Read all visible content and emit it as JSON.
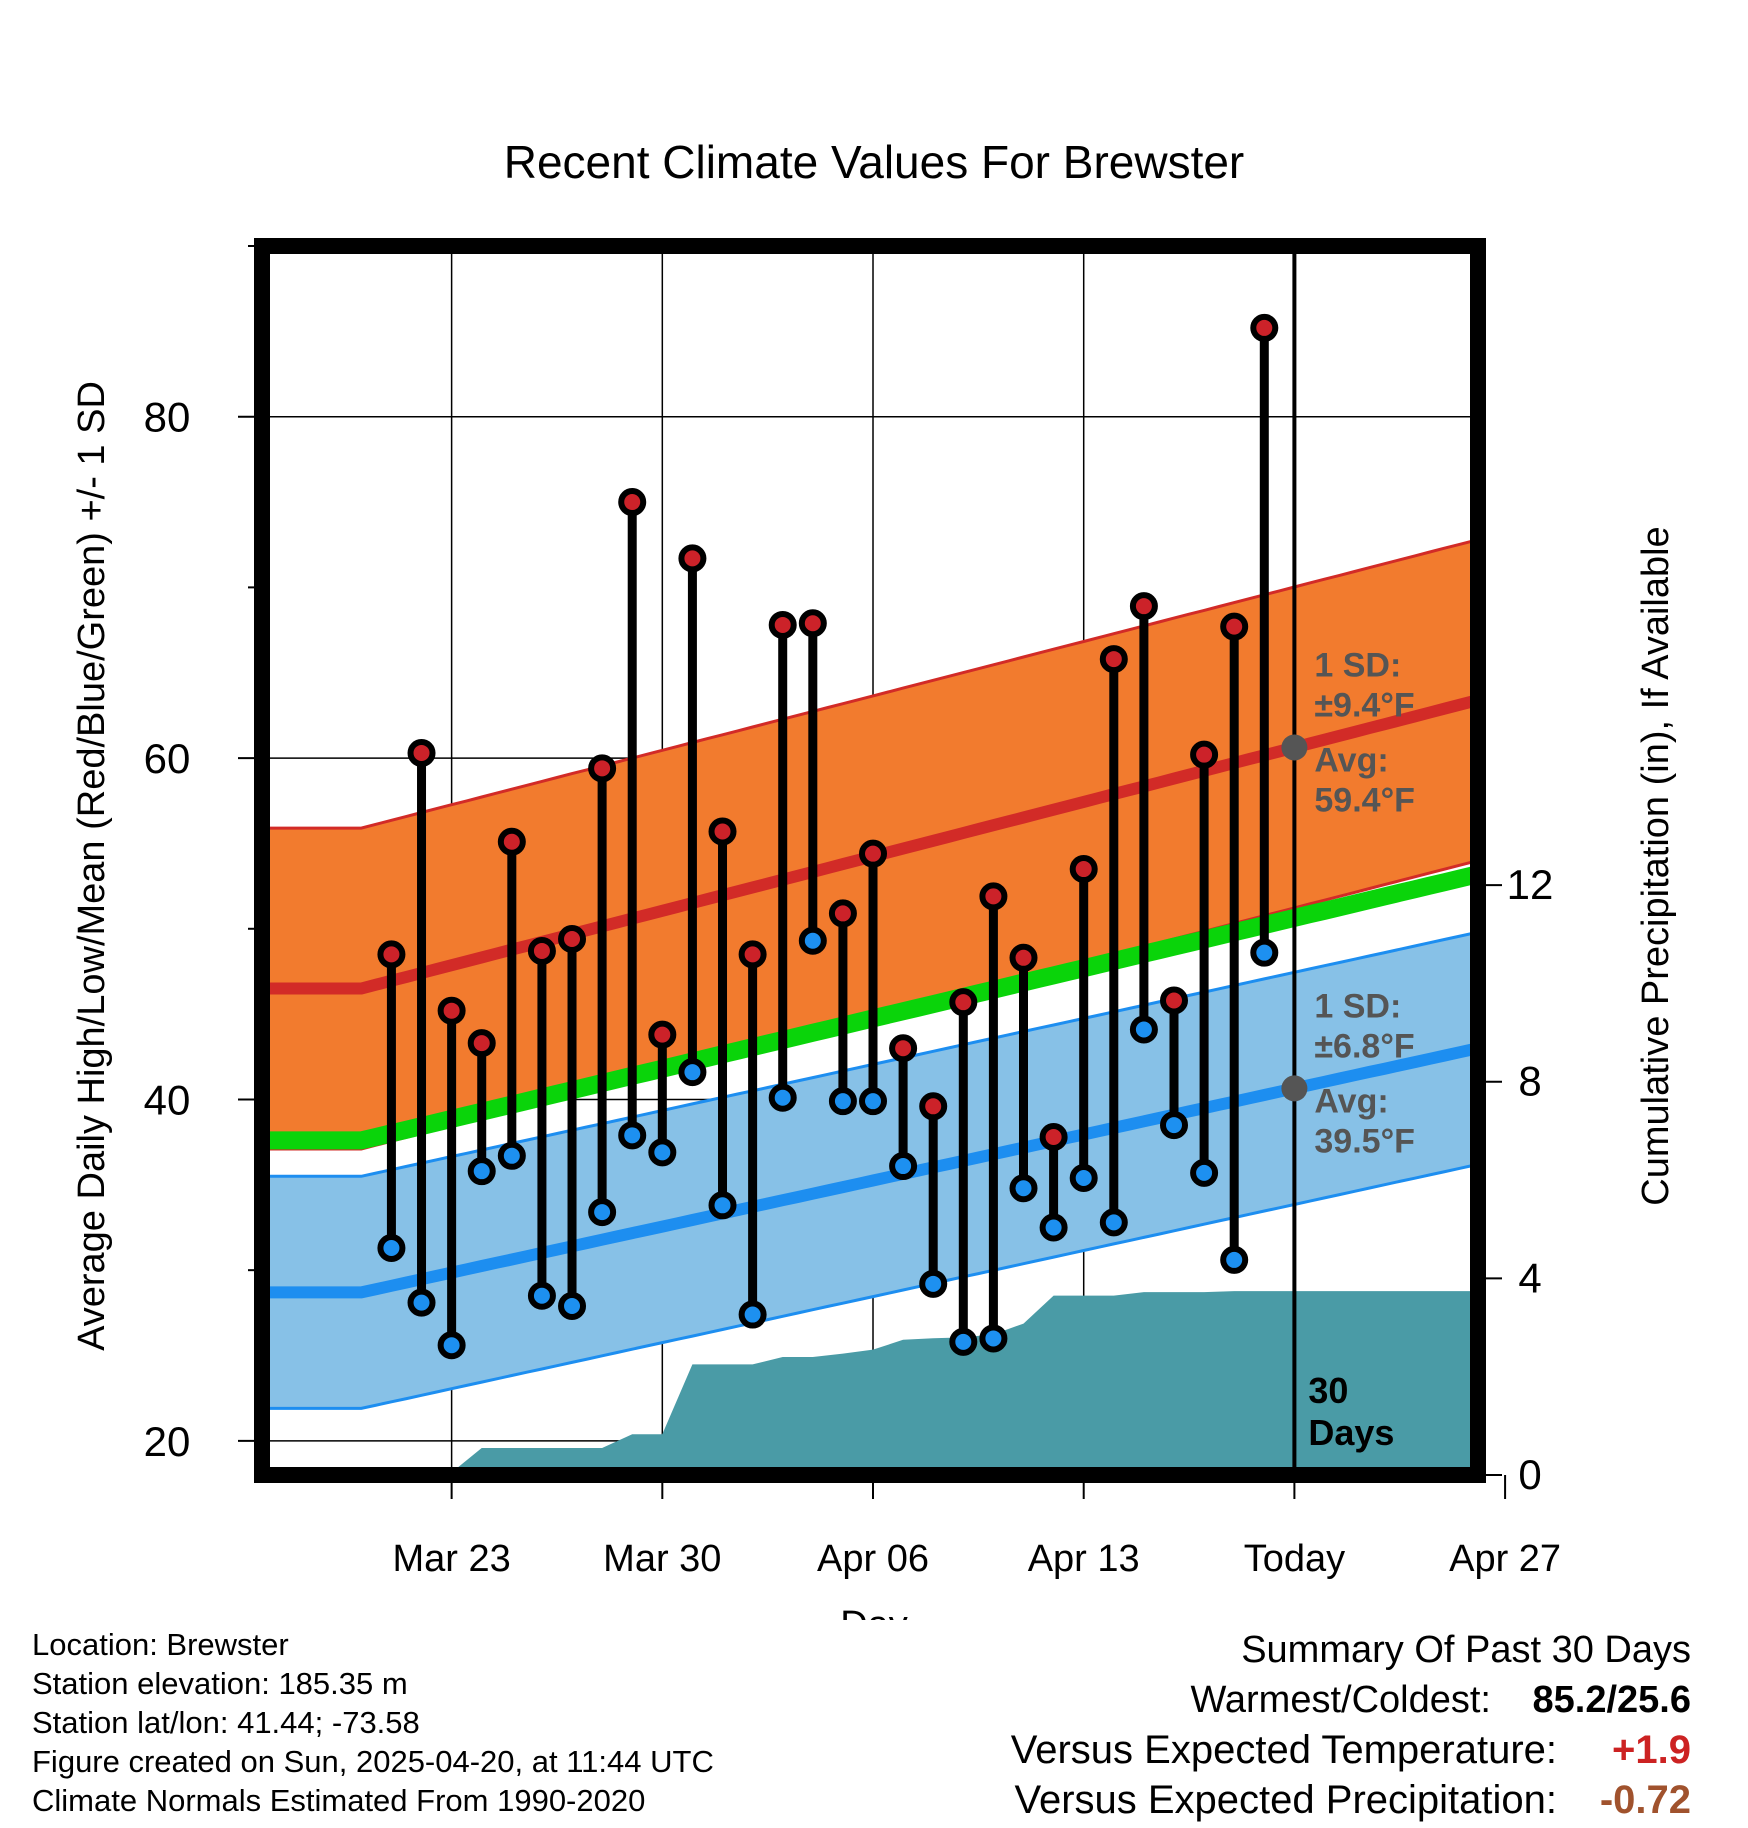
{
  "title": "Recent Climate Values For Brewster",
  "chart_data": {
    "type": "line",
    "title": "Recent Climate Values For Brewster",
    "xlabel": "Day",
    "ylabel": "Average Daily High/Low/Mean (Red/Blue/Green) +/- 1 SD",
    "ylabel_right": "Cumulative Precipitation (in), If Available",
    "ylim": [
      18,
      90
    ],
    "ylim_right": [
      0,
      25
    ],
    "xlim": [
      -3.3,
      37.1
    ],
    "x_tick_labels": [
      {
        "day": 3,
        "label": "Mar 23"
      },
      {
        "day": 10,
        "label": "Mar 30"
      },
      {
        "day": 17,
        "label": "Apr 06"
      },
      {
        "day": 24,
        "label": "Apr 13"
      },
      {
        "day": 31,
        "label": "Today"
      },
      {
        "day": 38,
        "label": "Apr 27"
      }
    ],
    "y_ticks": [
      20,
      40,
      60,
      80
    ],
    "y_ticks_right": [
      0,
      4,
      8,
      12
    ],
    "today_day": 31,
    "period_label": "30 Days",
    "daily": {
      "day": [
        1,
        2,
        3,
        4,
        5,
        6,
        7,
        8,
        9,
        10,
        11,
        12,
        13,
        14,
        15,
        16,
        17,
        18,
        19,
        20,
        21,
        22,
        23,
        24,
        25,
        26,
        27,
        28,
        29,
        30
      ],
      "high": [
        48.5,
        60.3,
        45.2,
        43.3,
        55.1,
        48.7,
        49.4,
        59.4,
        75.0,
        43.8,
        71.7,
        55.7,
        48.5,
        67.8,
        67.9,
        50.9,
        54.4,
        43.0,
        39.6,
        45.7,
        51.9,
        48.3,
        37.8,
        53.5,
        65.8,
        68.9,
        45.8,
        60.2,
        67.7,
        85.2
      ],
      "low": [
        31.3,
        28.1,
        25.6,
        35.8,
        36.7,
        28.5,
        27.9,
        33.4,
        37.9,
        36.9,
        41.6,
        33.8,
        27.4,
        40.1,
        49.3,
        39.9,
        39.9,
        36.1,
        29.2,
        25.8,
        26.0,
        34.8,
        32.5,
        35.4,
        32.8,
        44.1,
        38.5,
        35.7,
        30.6,
        48.6
      ]
    },
    "normals": {
      "day": [
        0,
        37.1
      ],
      "high_avg": [
        46.5,
        63.4
      ],
      "high_sd": 9.4,
      "low_avg": [
        28.7,
        43.0
      ],
      "low_sd": 6.8,
      "mean_avg": [
        37.6,
        53.2
      ]
    },
    "precip_cumulative": {
      "day": [
        3,
        4,
        5,
        6,
        7,
        8,
        9,
        10,
        11,
        12,
        13,
        14,
        15,
        16,
        17,
        18,
        19,
        20,
        21,
        22,
        23,
        24,
        25,
        26,
        27,
        28,
        29,
        30,
        31,
        37.1
      ],
      "inches": [
        0.05,
        0.55,
        0.55,
        0.55,
        0.55,
        0.55,
        0.83,
        0.83,
        2.25,
        2.25,
        2.25,
        2.4,
        2.4,
        2.47,
        2.55,
        2.75,
        2.78,
        2.8,
        2.86,
        3.08,
        3.65,
        3.65,
        3.65,
        3.72,
        3.72,
        3.72,
        3.74,
        3.74,
        3.74,
        3.74
      ]
    },
    "annotations": {
      "high_sd_label": "1 SD:",
      "high_sd_value": "±9.4°F",
      "high_avg_label": "Avg:",
      "high_avg_value": "59.4°F",
      "low_sd_label": "1 SD:",
      "low_sd_value": "±6.8°F",
      "low_avg_label": "Avg:",
      "low_avg_value": "39.5°F"
    },
    "colors": {
      "high_band": "#f27b2e",
      "high_line": "#d22b27",
      "high_edge": "#d22b27",
      "low_band": "#87c1e7",
      "low_line": "#1d8ef0",
      "low_edge": "#1d8ef0",
      "mean_line": "#0ad40a",
      "precip": "#4a9ba6",
      "high_dot": "#cc2229",
      "low_dot": "#1d90f0",
      "annotation": "#555555"
    }
  },
  "info": {
    "location": "Location: Brewster",
    "elevation": "Station elevation: 185.35 m",
    "latlon": "Station lat/lon: 41.44; -73.58",
    "created": "Figure created on Sun, 2025-04-20, at 11:44 UTC",
    "normals": "Climate Normals Estimated From 1990-2020"
  },
  "summary": {
    "heading": "Summary Of Past 30 Days",
    "warmest_label": "Warmest/Coldest:",
    "warmest_value": "85.2/25.6",
    "temp_label": "Versus Expected Temperature:",
    "temp_value": "+1.9",
    "precip_label": "Versus Expected Precipitation:",
    "precip_value": "-0.72"
  }
}
